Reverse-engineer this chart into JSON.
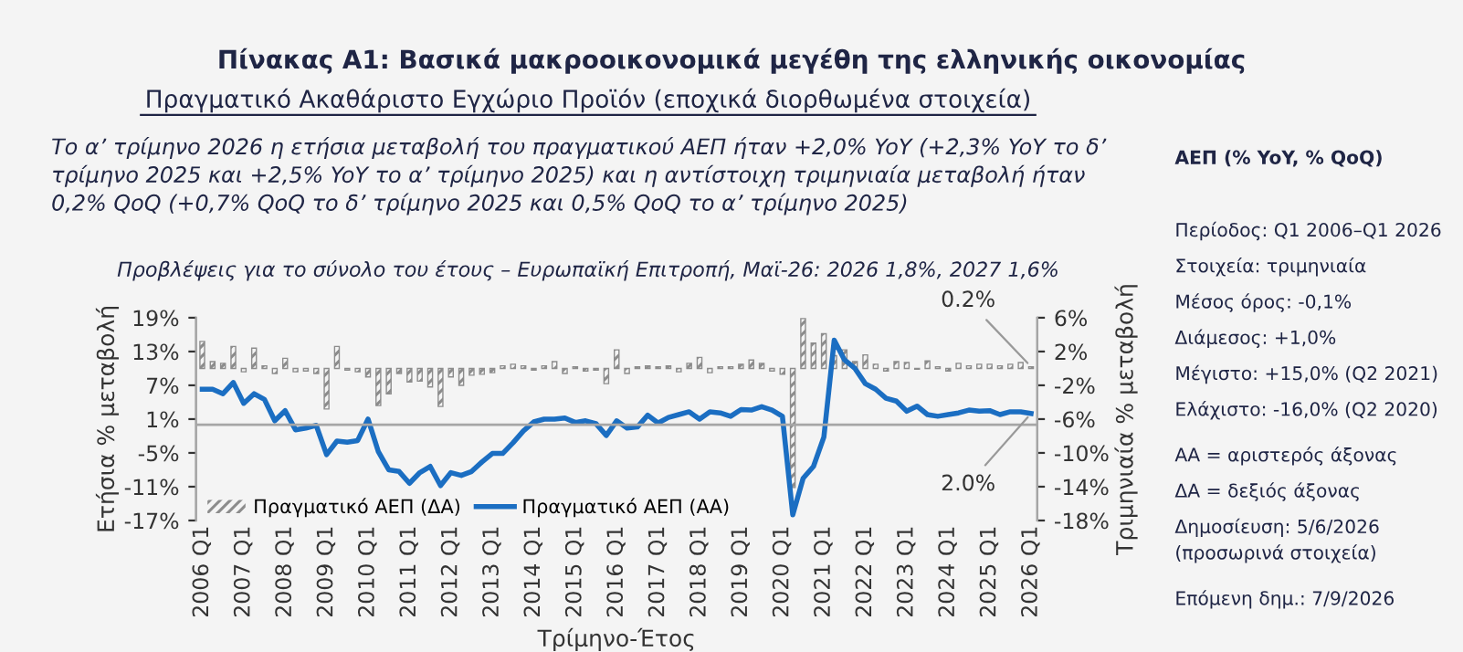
{
  "chart_data": {
    "type": "line",
    "title": "Πίνακας A1: Βασικά μακροοικονομικά μεγέθη της ελληνικής οικονομίας",
    "subtitle": "Πραγματικό Ακαθάριστο Εγχώριο Προϊόν (εποχικά διορθωμένα στοιχεία)",
    "xlabel": "Τρίμηνο-Έτος",
    "ylabel": "Ετήσια % μεταβολή",
    "y2label": "Τριμηνιαία % μεταβολή",
    "categories": [
      "2006 Q1",
      null,
      null,
      null,
      "2007 Q1",
      null,
      null,
      null,
      "2008 Q1",
      null,
      null,
      null,
      "2009 Q1",
      null,
      null,
      null,
      "2010 Q1",
      null,
      null,
      null,
      "2011 Q1",
      null,
      null,
      null,
      "2012 Q1",
      null,
      null,
      null,
      "2013 Q1",
      null,
      null,
      null,
      "2014 Q1",
      null,
      null,
      null,
      "2015 Q1",
      null,
      null,
      null,
      "2016 Q1",
      null,
      null,
      null,
      "2017 Q1",
      null,
      null,
      null,
      "2018 Q1",
      null,
      null,
      null,
      "2019 Q1",
      null,
      null,
      null,
      "2020 Q1",
      null,
      null,
      null,
      "2021 Q1",
      null,
      null,
      null,
      "2022 Q1",
      null,
      null,
      null,
      "2023 Q1",
      null,
      null,
      null,
      "2024 Q1",
      null,
      null,
      null,
      "2025 Q1",
      null,
      null,
      null,
      "2026 Q1"
    ],
    "series": [
      {
        "name": "Πραγματικό ΑΕΠ (ΔΑ)",
        "type": "bar",
        "axis": "y2",
        "color": "#8c8c8c",
        "values": [
          3.2,
          0.8,
          0.6,
          2.6,
          -0.4,
          2.4,
          0.3,
          -0.6,
          1.2,
          -0.4,
          -0.3,
          -0.6,
          -4.8,
          2.6,
          -0.2,
          -0.4,
          -1.0,
          -4.4,
          -3.0,
          -0.6,
          -1.6,
          -1.5,
          -2.2,
          -4.5,
          -1.0,
          -2.0,
          -0.8,
          -0.7,
          -0.5,
          0.3,
          0.5,
          0.3,
          -0.2,
          0.3,
          0.8,
          -0.6,
          0.2,
          -0.3,
          -0.2,
          -1.8,
          2.2,
          -0.6,
          0.2,
          0.3,
          0.2,
          0.3,
          -0.4,
          0.6,
          1.3,
          -0.5,
          0.2,
          0.2,
          0.5,
          1.0,
          0.6,
          -0.3,
          -0.7,
          -14.1,
          5.9,
          3.0,
          4.1,
          1.5,
          2.2,
          0.8,
          1.6,
          0.5,
          -0.3,
          0.8,
          0.7,
          -0.1,
          0.9,
          0.2,
          -0.3,
          0.6,
          0.3,
          0.5,
          0.5,
          0.3,
          0.5,
          0.7,
          0.2
        ],
        "value_labels": [
          null,
          null,
          null,
          null,
          null,
          null,
          null,
          null,
          null,
          null,
          null,
          null,
          null,
          null,
          null,
          null,
          null,
          null,
          null,
          null,
          null,
          null,
          null,
          null,
          null,
          null,
          null,
          null,
          null,
          null,
          null,
          null,
          null,
          null,
          null,
          null,
          null,
          null,
          null,
          null,
          null,
          null,
          null,
          null,
          null,
          null,
          null,
          null,
          null,
          null,
          null,
          null,
          null,
          null,
          null,
          null,
          null,
          null,
          null,
          null,
          null,
          null,
          null,
          null,
          null,
          null,
          null,
          null,
          null,
          null,
          null,
          null,
          null,
          null,
          null,
          null,
          null,
          null,
          null,
          null,
          "0.2%"
        ]
      },
      {
        "name": "Πραγματικό ΑΕΠ (ΑΑ)",
        "axis": "y",
        "color": "#1b6ec2",
        "values": [
          6.3,
          6.3,
          5.5,
          7.5,
          3.8,
          5.5,
          4.5,
          0.7,
          2.5,
          -0.9,
          -0.6,
          -0.1,
          -5.3,
          -2.9,
          -3.1,
          -2.8,
          1.0,
          -4.8,
          -8.0,
          -8.3,
          -10.4,
          -8.5,
          -7.4,
          -10.8,
          -8.5,
          -9.0,
          -8.3,
          -6.6,
          -5.1,
          -5.1,
          -3.2,
          -1.1,
          0.5,
          1.0,
          1.0,
          1.2,
          0.4,
          0.7,
          0.2,
          -1.9,
          0.7,
          -0.6,
          -0.4,
          1.7,
          0.3,
          1.3,
          1.8,
          2.3,
          1.0,
          2.3,
          2.1,
          1.5,
          2.7,
          2.6,
          3.2,
          2.6,
          1.5,
          -16.0,
          -9.5,
          -7.4,
          -2.2,
          15.0,
          11.5,
          10.0,
          7.3,
          6.3,
          4.7,
          4.2,
          2.4,
          3.3,
          1.8,
          1.5,
          1.8,
          2.1,
          2.6,
          2.4,
          2.5,
          1.8,
          2.3,
          2.3,
          2.0
        ],
        "value_labels": [
          null,
          null,
          null,
          null,
          null,
          null,
          null,
          null,
          null,
          null,
          null,
          null,
          null,
          null,
          null,
          null,
          null,
          null,
          null,
          null,
          null,
          null,
          null,
          null,
          null,
          null,
          null,
          null,
          null,
          null,
          null,
          null,
          null,
          null,
          null,
          null,
          null,
          null,
          null,
          null,
          null,
          null,
          null,
          null,
          null,
          null,
          null,
          null,
          null,
          null,
          null,
          null,
          null,
          null,
          null,
          null,
          null,
          null,
          null,
          null,
          null,
          null,
          null,
          null,
          null,
          null,
          null,
          null,
          null,
          null,
          null,
          null,
          null,
          null,
          null,
          null,
          null,
          null,
          null,
          null,
          "2.0%"
        ]
      }
    ],
    "ylim": [
      -17,
      19
    ],
    "yticks": [
      {
        "value": -17,
        "label": "-17%"
      },
      {
        "value": -11,
        "label": "-11%"
      },
      {
        "value": -5,
        "label": "-5%"
      },
      {
        "value": 1,
        "label": "1%"
      },
      {
        "value": 7,
        "label": "7%"
      },
      {
        "value": 13,
        "label": "13%"
      },
      {
        "value": 19,
        "label": "19%"
      }
    ],
    "y2lim": [
      -18,
      6
    ],
    "y2ticks": [
      {
        "value": -18,
        "label": "-18%"
      },
      {
        "value": -14,
        "label": "-14%"
      },
      {
        "value": -10,
        "label": "-10%"
      },
      {
        "value": -6,
        "label": "-6%"
      },
      {
        "value": -2,
        "label": "-2%"
      },
      {
        "value": 2,
        "label": "2%"
      },
      {
        "value": 6,
        "label": "6%"
      }
    ],
    "ref_lines": [
      {
        "axis": "y",
        "value": 0,
        "color": "#a6a6a6"
      }
    ],
    "legend": "lower left",
    "grid": false,
    "annotations": [
      "Το α’ τρίμηνο 2026 η ετήσια μεταβολή του πραγματικού ΑΕΠ ήταν +2,0% YoY (+2,3% YoY το δ’ τρίμηνο 2025 και +2,5% YoY το α’ τρίμηνο 2025) και η αντίστοιχη τριμηνιαία μεταβολή ήταν 0,2% QoQ (+0,7% QoQ το δ’ τρίμηνο 2025 και 0,5% QoQ το α’ τρίμηνο 2025)",
      "Προβλέψεις για το σύνολο του έτους – Ευρωπαϊκή Επιτροπή, Μαϊ-26: 2026 1,8%, 2027 1,6%",
      "ΑΕΠ (% YoY, % QoQ)",
      "Περίοδος: Q1 2006–Q1 2026",
      "Στοιχεία: τριμηνιαία",
      "Μέσος όρος: -0,1%",
      "Διάμεσος: +1,0%",
      "Μέγιστο: +15,0% (Q2 2021)",
      "Ελάχιστο: -16,0% (Q2 2020)",
      "ΑΑ = αριστερός άξονας",
      "ΔΑ = δεξιός άξονας",
      "Δημοσίευση: 5/6/2026 (προσωρινά στοιχεία)",
      "Επόμενη δημ.: 7/9/2026"
    ]
  }
}
